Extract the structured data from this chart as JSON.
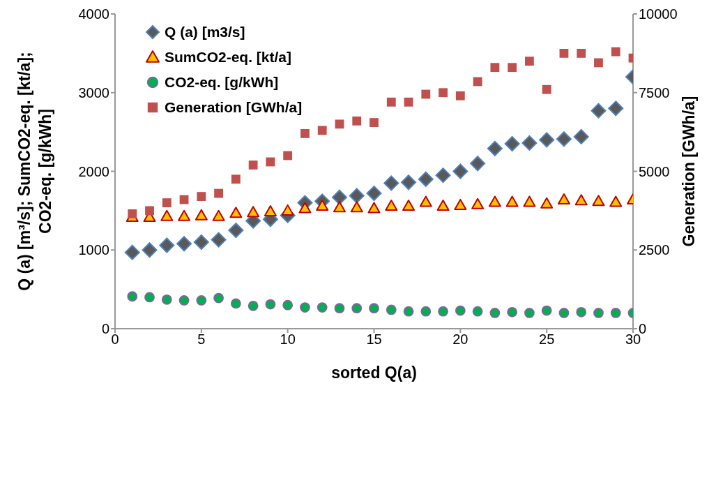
{
  "chart_data": {
    "type": "scatter",
    "xlabel": "sorted Q(a)",
    "ylabel": "Q (a) [m³/s]; SumCO2-eq. [kt/a];\nCO2-eq. [g/kWh]",
    "y2label": "Generation [GWh/a]",
    "x": [
      1,
      2,
      3,
      4,
      5,
      6,
      7,
      8,
      9,
      10,
      11,
      12,
      13,
      14,
      15,
      16,
      17,
      18,
      19,
      20,
      21,
      22,
      23,
      24,
      25,
      26,
      27,
      28,
      29,
      30
    ],
    "xlim": [
      0,
      30
    ],
    "xticks": [
      0,
      5,
      10,
      15,
      20,
      25,
      30
    ],
    "ylim": [
      0,
      4000
    ],
    "yticks": [
      0,
      1000,
      2000,
      3000,
      4000
    ],
    "y2lim": [
      0,
      10000
    ],
    "y2ticks": [
      0,
      2500,
      5000,
      7500,
      10000
    ],
    "grid": false,
    "legend": "top left",
    "series": [
      {
        "name": "Q (a) [m3/s]",
        "color": "#595959",
        "marker": "diamond",
        "values": [
          970,
          1000,
          1060,
          1080,
          1100,
          1130,
          1250,
          1370,
          1390,
          1440,
          1600,
          1620,
          1670,
          1690,
          1720,
          1850,
          1860,
          1900,
          1950,
          2000,
          2100,
          2290,
          2350,
          2360,
          2400,
          2410,
          2440,
          2770,
          2800,
          3200
        ]
      },
      {
        "name": "SumCO2-eq. [kt/a]",
        "color": "#ffc000",
        "marker": "triangle",
        "values": [
          1420,
          1420,
          1430,
          1430,
          1440,
          1430,
          1470,
          1480,
          1490,
          1500,
          1530,
          1560,
          1540,
          1540,
          1530,
          1560,
          1560,
          1610,
          1560,
          1570,
          1580,
          1610,
          1610,
          1610,
          1590,
          1640,
          1630,
          1620,
          1610,
          1640
        ]
      },
      {
        "name": "CO2-eq. [g/kWh]",
        "color": "#00b050",
        "marker": "circle",
        "values": [
          410,
          400,
          370,
          360,
          360,
          390,
          320,
          290,
          310,
          300,
          270,
          270,
          260,
          260,
          260,
          240,
          220,
          220,
          220,
          230,
          220,
          200,
          210,
          200,
          230,
          200,
          210,
          200,
          200,
          200
        ]
      },
      {
        "name": "Generation [GWh/a]",
        "color": "#c0504d",
        "marker": "square",
        "axis": "y2",
        "values": [
          3650,
          3750,
          4000,
          4100,
          4200,
          4300,
          4750,
          5200,
          5300,
          5500,
          6200,
          6300,
          6500,
          6600,
          6550,
          7200,
          7200,
          7450,
          7500,
          7400,
          7850,
          8300,
          8300,
          8500,
          7600,
          8750,
          8750,
          8450,
          8800,
          8600
        ]
      }
    ]
  }
}
